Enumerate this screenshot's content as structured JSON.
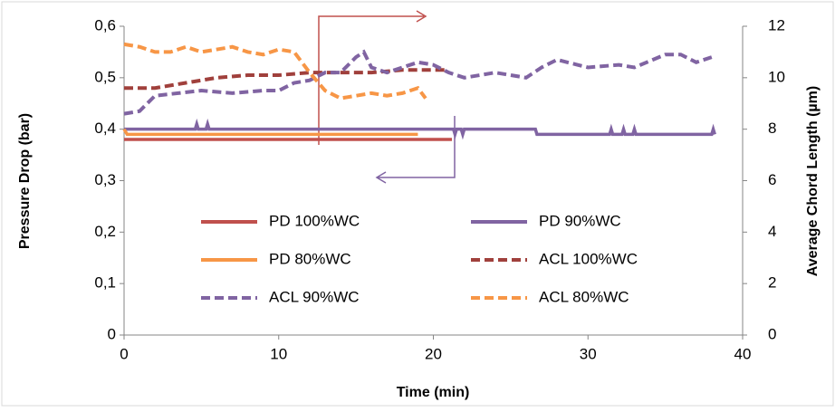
{
  "chart_data": {
    "type": "line",
    "xlabel": "Time (min)",
    "ylabel": "Pressure Drop (bar)",
    "y2label": "Average Chord Length (µm)",
    "xlim": [
      0,
      40
    ],
    "xticks": [
      0,
      10,
      20,
      30,
      40
    ],
    "ylim": [
      0,
      0.6
    ],
    "yticks": [
      0,
      {
        "value": 0.1,
        "label": "0,1"
      },
      {
        "value": 0.2,
        "label": "0,2"
      },
      {
        "value": 0.3,
        "label": "0,3"
      },
      {
        "value": 0.4,
        "label": "0,4"
      },
      {
        "value": 0.5,
        "label": "0,5"
      },
      {
        "value": 0.6,
        "label": "0,6"
      }
    ],
    "y2lim": [
      0,
      12
    ],
    "y2ticks": [
      0,
      2,
      4,
      6,
      8,
      10,
      12
    ],
    "series": [
      {
        "name": "PD 100%WC",
        "color": "#c0504d",
        "style": "solid",
        "axis": "y",
        "x": [
          0,
          21.2
        ],
        "values": [
          0.38,
          0.38
        ]
      },
      {
        "name": "PD 90%WC",
        "color": "#8064a2",
        "style": "solid",
        "axis": "y",
        "x": [
          0,
          4.6,
          4.7,
          4.8,
          5.3,
          5.4,
          5.5,
          21.3,
          21.4,
          21.5,
          21.8,
          21.9,
          22.0,
          26.6,
          26.7,
          31.4,
          31.5,
          31.6,
          32.2,
          32.3,
          32.4,
          32.9,
          33.0,
          33.1,
          38.0,
          38.1,
          38.2
        ],
        "values": [
          0.4,
          0.4,
          0.41,
          0.4,
          0.4,
          0.41,
          0.4,
          0.4,
          0.39,
          0.4,
          0.4,
          0.39,
          0.4,
          0.4,
          0.39,
          0.39,
          0.4,
          0.39,
          0.39,
          0.4,
          0.39,
          0.39,
          0.4,
          0.39,
          0.39,
          0.4,
          0.39
        ]
      },
      {
        "name": "PD 80%WC",
        "color": "#f79646",
        "style": "solid",
        "axis": "y",
        "x": [
          0,
          0.2,
          19
        ],
        "values": [
          0.4,
          0.39,
          0.39
        ]
      },
      {
        "name": "ACL 100%WC",
        "color": "#a0403c",
        "style": "dashed",
        "axis": "y2",
        "x": [
          0,
          2,
          4,
          6,
          8,
          10,
          12,
          14,
          16,
          18,
          20,
          21
        ],
        "values": [
          9.6,
          9.6,
          9.8,
          10,
          10.1,
          10.1,
          10.2,
          10.2,
          10.2,
          10.3,
          10.3,
          10.3
        ]
      },
      {
        "name": "ACL 90%WC",
        "color": "#8064a2",
        "style": "dashed",
        "axis": "y2",
        "x": [
          0,
          1,
          2,
          3.5,
          5,
          7,
          9,
          10,
          11,
          12,
          13,
          14,
          15,
          15.5,
          16,
          17,
          18,
          19,
          20,
          21,
          22,
          24,
          26,
          27,
          28,
          30,
          32,
          33,
          35,
          36,
          37,
          38
        ],
        "values": [
          8.6,
          8.7,
          9.3,
          9.4,
          9.5,
          9.4,
          9.5,
          9.5,
          9.8,
          9.9,
          10.2,
          10.2,
          10.8,
          11,
          10.4,
          10.2,
          10.4,
          10.6,
          10.5,
          10.2,
          10,
          10.2,
          10,
          10.4,
          10.7,
          10.4,
          10.5,
          10.4,
          10.9,
          10.9,
          10.6,
          10.8
        ]
      },
      {
        "name": "ACL 80%WC",
        "color": "#f79646",
        "style": "dashed",
        "axis": "y2",
        "x": [
          0,
          1,
          2,
          3,
          4,
          5,
          6,
          7,
          8,
          9,
          10,
          11,
          12,
          13,
          14,
          15,
          16,
          17,
          18,
          19,
          19.5
        ],
        "values": [
          11.3,
          11.2,
          11,
          11,
          11.2,
          11,
          11.1,
          11.2,
          11,
          10.9,
          11.1,
          11,
          10.2,
          9.5,
          9.2,
          9.3,
          9.4,
          9.3,
          9.4,
          9.6,
          9.2
        ]
      }
    ]
  }
}
